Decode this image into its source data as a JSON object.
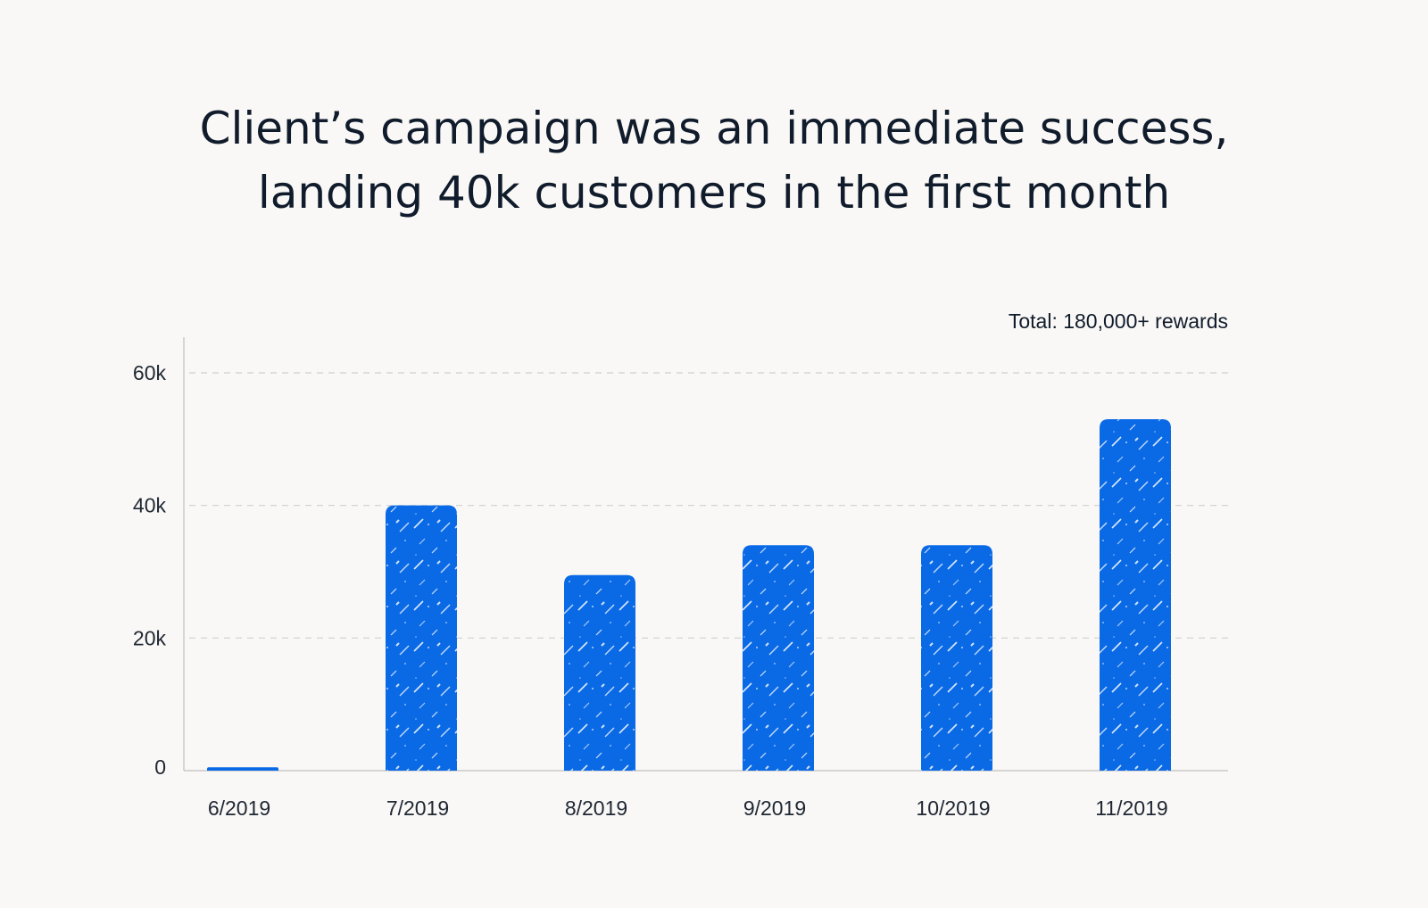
{
  "chart_data": {
    "type": "bar",
    "title_lines": [
      "Client’s campaign was an immediate success,",
      "landing 40k customers in the first month"
    ],
    "annotation": "Total: 180,000+ rewards",
    "categories": [
      "6/2019",
      "7/2019",
      "8/2019",
      "9/2019",
      "10/2019",
      "11/2019"
    ],
    "values": [
      500,
      40000,
      29500,
      34000,
      34000,
      53000
    ],
    "yticks": [
      {
        "value": 0,
        "label": "0"
      },
      {
        "value": 20000,
        "label": "20k"
      },
      {
        "value": 40000,
        "label": "40k"
      },
      {
        "value": 60000,
        "label": "60k"
      }
    ],
    "ylim": [
      0,
      65000
    ],
    "grid": true,
    "bar_color": "#0a6ae6",
    "grid_color": "#cfcfcf",
    "axis_color": "#c9c9c9"
  }
}
